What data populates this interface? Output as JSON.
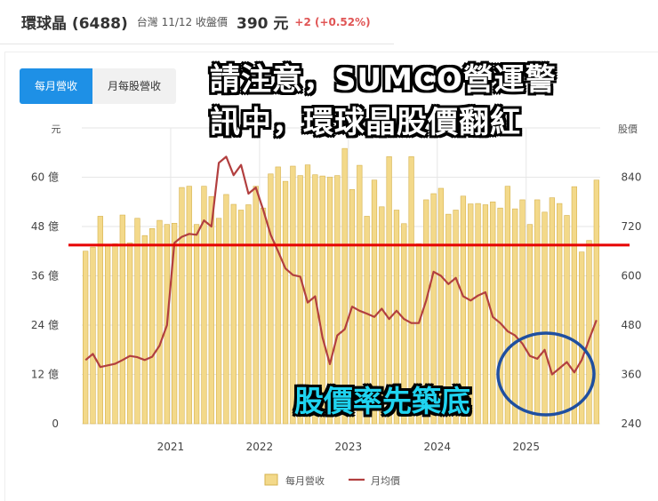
{
  "header": {
    "name": "環球晶 (6488)",
    "market_date": "台灣 11/12 收盤價",
    "price": "390 元",
    "change": "+2 (+0.52%)",
    "change_color": "#e05555"
  },
  "tabs": [
    {
      "label": "每月營收",
      "active": true
    },
    {
      "label": "月每股營收",
      "active": false
    }
  ],
  "overlay": {
    "title_line1": "請注意，SUMCO營運警",
    "title_line2": "訊中，環球晶股價翻紅",
    "note": "股價率先築底"
  },
  "colors": {
    "bar": "#f3d98a",
    "bar_edge": "#d6b24e",
    "line": "#b23f3f",
    "redline": "#e60000",
    "circle": "#1f4fa0",
    "tab_active": "#1e90e6"
  },
  "chart_data": {
    "type": "bar+line",
    "left_axis": {
      "label": "元",
      "ticks": [
        "0",
        "12 億",
        "24 億",
        "36 億",
        "48 億",
        "60 億"
      ],
      "range": [
        0,
        72
      ]
    },
    "right_axis": {
      "label": "股價",
      "ticks": [
        "240",
        "360",
        "480",
        "600",
        "720",
        "840"
      ],
      "range": [
        240,
        960
      ]
    },
    "x_axis": {
      "labels": [
        "2021",
        "2022",
        "2023",
        "2024",
        "2025"
      ],
      "start_year": 2020,
      "start_month": 1
    },
    "series": [
      {
        "name": "每月營收",
        "kind": "bar",
        "values": [
          42.0,
          43.0,
          50.5,
          43.5,
          43.8,
          50.8,
          44.0,
          50.0,
          45.8,
          47.5,
          49.5,
          48.5,
          48.8,
          57.5,
          57.8,
          48.5,
          57.8,
          55.3,
          50.0,
          55.8,
          53.4,
          52.0,
          53.3,
          57.8,
          52.5,
          60.8,
          62.5,
          59.0,
          62.7,
          60.4,
          63.0,
          60.6,
          60.3,
          60.0,
          60.4,
          67.0,
          57.0,
          62.9,
          50.5,
          59.3,
          52.8,
          65.0,
          52.0,
          48.7,
          65.0,
          43.8,
          54.5,
          56.0,
          57.3,
          51.0,
          52.0,
          55.4,
          53.5,
          53.6,
          53.3,
          54.0,
          52.5,
          57.8,
          52.3,
          54.5,
          48.5,
          54.5,
          51.5,
          55.0,
          53.6,
          50.7,
          57.7,
          41.8,
          44.6,
          59.3
        ]
      },
      {
        "name": "月均價",
        "kind": "line",
        "values": [
          395,
          410,
          378,
          382,
          386,
          395,
          405,
          402,
          395,
          403,
          430,
          480,
          680,
          695,
          702,
          700,
          735,
          720,
          875,
          890,
          845,
          870,
          800,
          815,
          760,
          700,
          660,
          618,
          602,
          598,
          535,
          550,
          450,
          385,
          455,
          470,
          525,
          515,
          508,
          500,
          520,
          495,
          515,
          495,
          485,
          485,
          540,
          610,
          600,
          580,
          595,
          550,
          540,
          552,
          560,
          500,
          485,
          465,
          455,
          435,
          405,
          398,
          420,
          360,
          375,
          390,
          365,
          395,
          445,
          492
        ]
      }
    ],
    "reference_line_value": 43.5,
    "legend": "bottom"
  }
}
